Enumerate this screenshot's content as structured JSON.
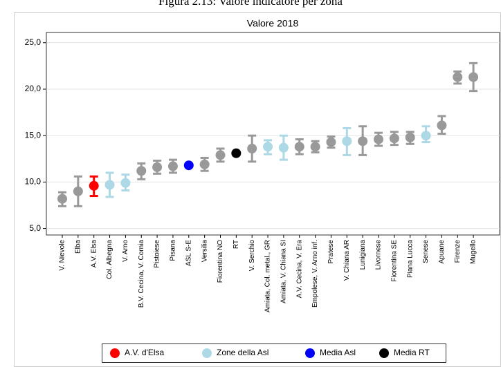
{
  "chart_data": {
    "type": "dot_interval",
    "title": "Figura 2.13: Valore indicatore per zona",
    "subtitle": "Valore 2018",
    "categories": [
      "V. Nievole",
      "Elba",
      "A.V. Elsa",
      "Col. Albegna",
      "V. Arno",
      "B.V. Cecina, V. Cornia",
      "Pistoiese",
      "Pisana",
      "ASL S-E",
      "Versilia",
      "Fiorentina NO",
      "RT",
      "V. Serchio",
      "Amiata, Col. metal., GR",
      "Amiata, V. Chiana SI",
      "A.V. Cecina, V. Era",
      "Empolese, V. Arno inf.",
      "Pratese",
      "V. Chiana AR",
      "Lunigiana",
      "Livornese",
      "Fiorentina SE",
      "Piana Lucca",
      "Senese",
      "Apuane",
      "Firenze",
      "Mugello"
    ],
    "values": [
      8.2,
      9.0,
      9.6,
      9.7,
      9.9,
      11.2,
      11.6,
      11.7,
      11.8,
      11.9,
      12.9,
      13.1,
      13.6,
      13.8,
      13.7,
      13.8,
      13.8,
      14.3,
      14.4,
      14.4,
      14.6,
      14.7,
      14.8,
      15.0,
      16.1,
      21.3,
      21.3
    ],
    "low": [
      7.4,
      7.4,
      8.5,
      8.4,
      9.1,
      10.3,
      10.9,
      11.0,
      null,
      11.2,
      12.2,
      null,
      12.2,
      13.0,
      12.4,
      13.0,
      13.2,
      13.7,
      12.9,
      12.9,
      13.9,
      14.0,
      14.1,
      14.3,
      15.2,
      20.6,
      19.8
    ],
    "high": [
      8.9,
      10.6,
      10.6,
      11.0,
      10.8,
      12.0,
      12.3,
      12.4,
      null,
      12.6,
      13.6,
      null,
      15.0,
      14.5,
      15.0,
      14.6,
      14.4,
      14.9,
      15.8,
      16.0,
      15.3,
      15.4,
      15.4,
      16.0,
      17.1,
      21.9,
      22.8
    ],
    "point_colors": [
      "#999999",
      "#999999",
      "#ff0000",
      "#add8e6",
      "#add8e6",
      "#999999",
      "#999999",
      "#999999",
      "#0000ff",
      "#999999",
      "#999999",
      "#000000",
      "#999999",
      "#add8e6",
      "#add8e6",
      "#999999",
      "#999999",
      "#999999",
      "#add8e6",
      "#999999",
      "#999999",
      "#999999",
      "#999999",
      "#add8e6",
      "#999999",
      "#999999",
      "#999999"
    ],
    "series": [
      {
        "name": "A.V. d'Elsa",
        "color": "#ff0000"
      },
      {
        "name": "Zone della Asl",
        "color": "#add8e6"
      },
      {
        "name": "Media Asl",
        "color": "#0000ff"
      },
      {
        "name": "Media RT",
        "color": "#000000"
      }
    ],
    "ylim": [
      4.3,
      26.1
    ],
    "yticks": [
      {
        "value": 5,
        "label": "5,0"
      },
      {
        "value": 10,
        "label": "10,0"
      },
      {
        "value": 15,
        "label": "15,0"
      },
      {
        "value": 20,
        "label": "20,0"
      },
      {
        "value": 25,
        "label": "25,0"
      }
    ],
    "grid": true
  }
}
